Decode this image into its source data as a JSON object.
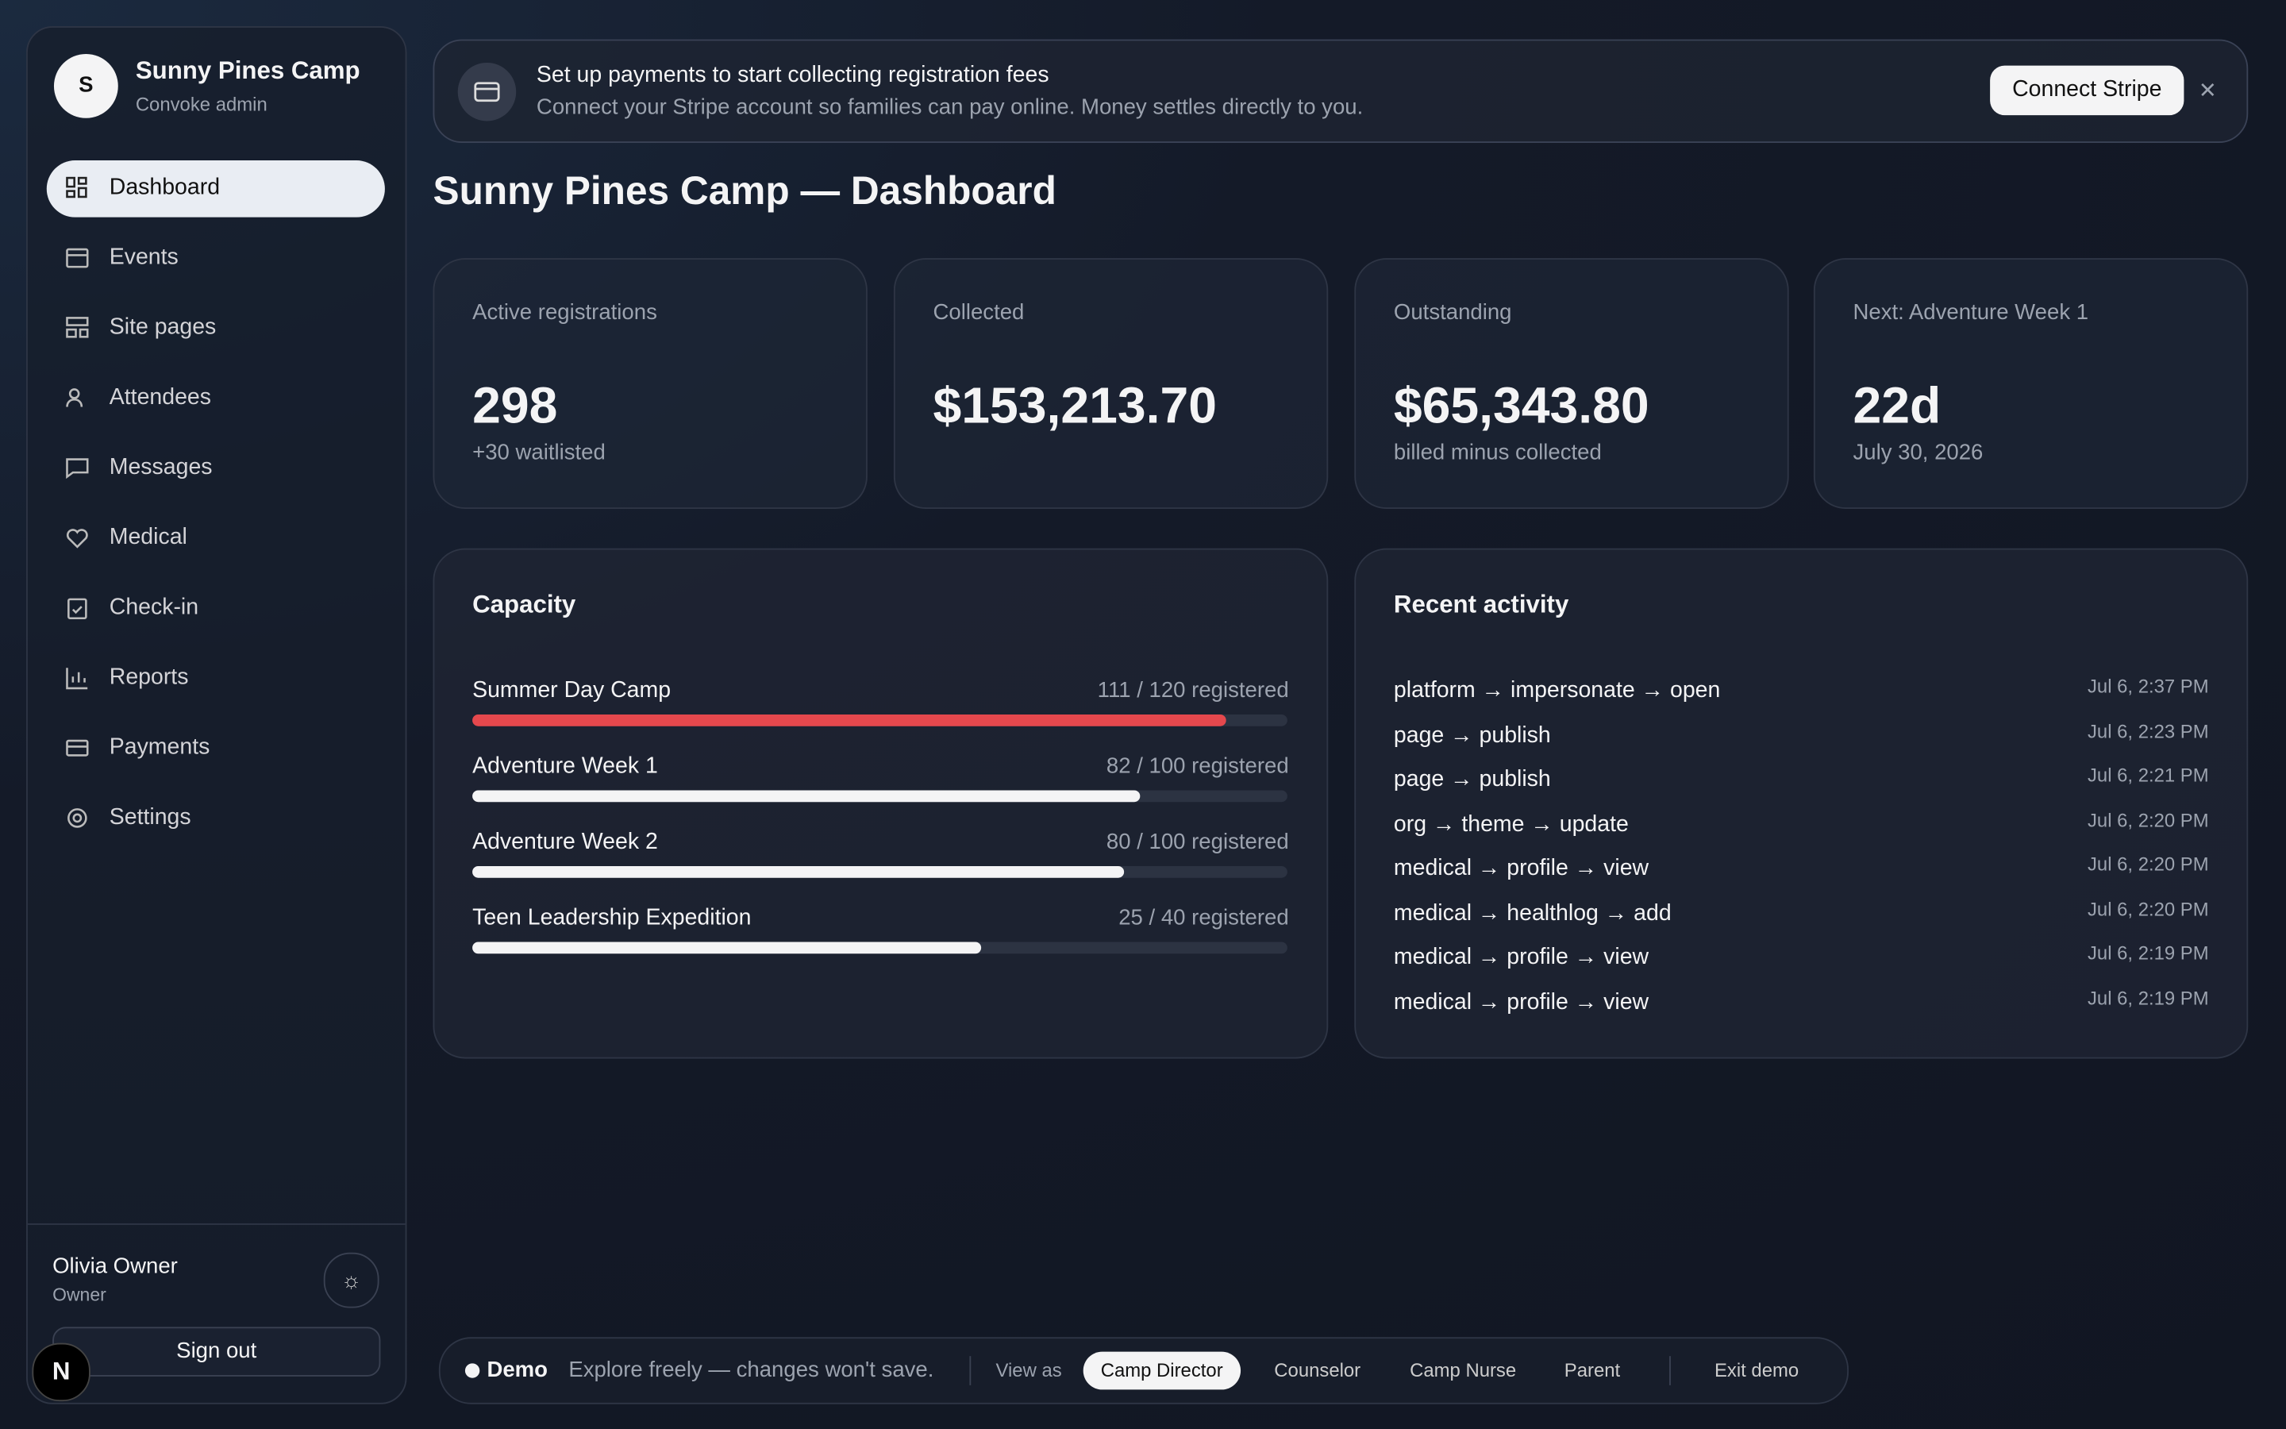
{
  "sidebar": {
    "avatar": "S",
    "org_name": "Sunny Pines Camp",
    "org_role": "Convoke admin",
    "nav": [
      "Dashboard",
      "Events",
      "Site pages",
      "Attendees",
      "Messages",
      "Medical",
      "Check-in",
      "Reports",
      "Payments",
      "Settings"
    ],
    "user_name": "Olivia Owner",
    "user_role": "Owner",
    "sign_out": "Sign out",
    "badge": "N"
  },
  "banner": {
    "title": "Set up payments to start collecting registration fees",
    "text": "Connect your Stripe account so families can pay online. Money settles directly to you.",
    "button": "Connect Stripe",
    "close": "✕"
  },
  "page_title": "Sunny Pines Camp — Dashboard",
  "stats": [
    {
      "label": "Active registrations",
      "value": "298",
      "note": "+30 waitlisted"
    },
    {
      "label": "Collected",
      "value": "$153,213.70"
    },
    {
      "label": "Outstanding",
      "value": "$65,343.80",
      "note": "billed minus collected"
    },
    {
      "label": "Next: Adventure Week 1",
      "value": "22d",
      "note": "July 30, 2026"
    }
  ],
  "capacity": {
    "title": "Capacity",
    "items": [
      {
        "name": "Summer Day Camp",
        "registered": 111,
        "capacity": 120,
        "label": "111 / 120 registered",
        "color": "#e5484d"
      },
      {
        "name": "Adventure Week 1",
        "registered": 82,
        "capacity": 100,
        "label": "82 / 100 registered",
        "color": "#f4f4f5"
      },
      {
        "name": "Adventure Week 2",
        "registered": 80,
        "capacity": 100,
        "label": "80 / 100 registered",
        "color": "#f4f4f5"
      },
      {
        "name": "Teen Leadership Expedition",
        "registered": 25,
        "capacity": 40,
        "label": "25 / 40 registered",
        "color": "#f4f4f5"
      }
    ]
  },
  "activity": {
    "title": "Recent activity",
    "items": [
      {
        "text": "platform → impersonate → open",
        "time": "Jul 6, 2:37 PM"
      },
      {
        "text": "page → publish",
        "time": "Jul 6, 2:23 PM"
      },
      {
        "text": "page → publish",
        "time": "Jul 6, 2:21 PM"
      },
      {
        "text": "org → theme → update",
        "time": "Jul 6, 2:20 PM"
      },
      {
        "text": "medical → profile → view",
        "time": "Jul 6, 2:20 PM"
      },
      {
        "text": "medical → healthlog → add",
        "time": "Jul 6, 2:20 PM"
      },
      {
        "text": "medical → profile → view",
        "time": "Jul 6, 2:19 PM"
      },
      {
        "text": "medical → profile → view",
        "time": "Jul 6, 2:19 PM"
      }
    ]
  },
  "demo": {
    "label": "Demo",
    "text": "Explore freely — changes won't save.",
    "view_as": "View as",
    "roles": [
      "Camp Director",
      "Counselor",
      "Camp Nurse",
      "Parent"
    ],
    "exit": "Exit demo"
  }
}
